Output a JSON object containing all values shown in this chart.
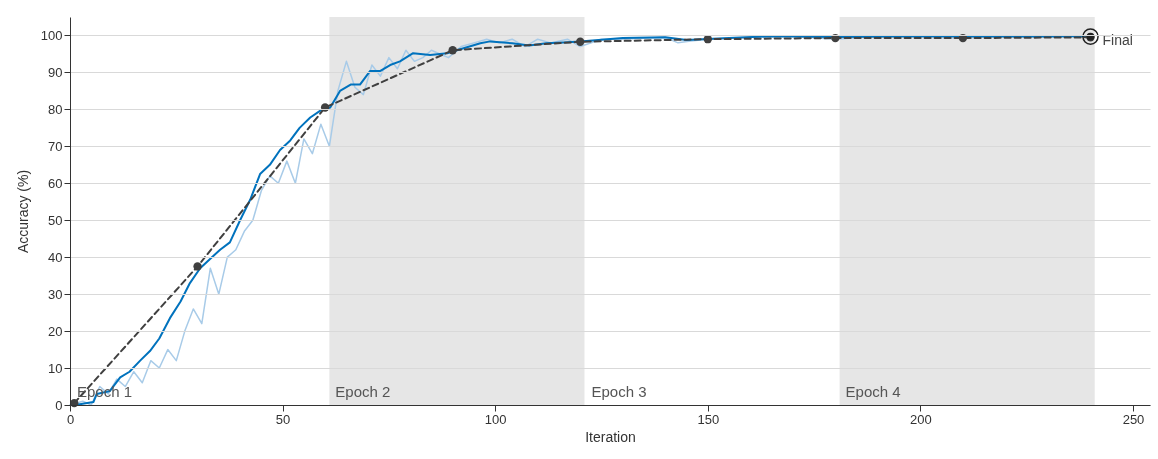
{
  "chart_data": {
    "type": "line",
    "xlabel": "Iteration",
    "ylabel": "Accuracy (%)",
    "xlim": [
      0,
      254
    ],
    "ylim": [
      0,
      105
    ],
    "xticks": [
      0,
      50,
      100,
      150,
      200,
      250
    ],
    "yticks": [
      0,
      10,
      20,
      30,
      40,
      50,
      60,
      70,
      80,
      90,
      100
    ],
    "grid": "y",
    "series": [
      {
        "color": "#a8cbe8",
        "x": [
          0,
          3,
          5,
          7,
          9,
          11,
          13,
          15,
          17,
          19,
          21,
          23,
          25,
          27,
          29,
          31,
          33,
          35,
          37,
          39,
          41,
          43,
          45,
          47,
          49,
          51,
          53,
          55,
          57,
          59,
          61,
          63,
          65,
          67,
          69,
          71,
          73,
          75,
          77,
          79,
          81,
          83,
          85,
          87,
          89,
          92,
          95,
          98,
          101,
          104,
          107,
          110,
          113,
          117,
          120,
          125,
          130,
          140,
          143,
          146,
          150,
          160,
          170,
          180,
          190,
          200,
          210,
          220,
          230,
          240
        ],
        "values": [
          0,
          1,
          0,
          5,
          3,
          7,
          5,
          9,
          6,
          12,
          10,
          15,
          12,
          20,
          26,
          22,
          37,
          30,
          40,
          42,
          47,
          50,
          58,
          62,
          60,
          66,
          60,
          72,
          68,
          76,
          70,
          85,
          93,
          86,
          84,
          92,
          89,
          94,
          91,
          96,
          93,
          94,
          96,
          95,
          94,
          97,
          98,
          99,
          98,
          99,
          97,
          99,
          98,
          99,
          97,
          99,
          99,
          99.5,
          98,
          98.5,
          99,
          99.5,
          99.8,
          99,
          99.8,
          99.5,
          99.3,
          99.8,
          99.5,
          100
        ]
      },
      {
        "color": "#0072bd",
        "x": [
          1.2,
          5.5,
          6.3,
          9.4,
          11.8,
          14,
          16.5,
          18.8,
          21,
          23.5,
          26,
          28.2,
          30.6,
          33,
          35.3,
          37.6,
          40,
          42.4,
          44.7,
          47,
          49.4,
          51.8,
          54,
          56.5,
          58.8,
          61.2,
          63.5,
          66,
          68.2,
          70.6,
          73,
          75.3,
          77.6,
          80.7,
          84.7,
          88.7,
          91,
          96.5,
          98.8,
          104,
          108,
          112,
          116,
          120,
          130,
          140,
          145,
          155,
          165,
          180,
          200,
          220,
          240
        ],
        "values": [
          0,
          0.8,
          3,
          3.8,
          7.5,
          9,
          12,
          14.6,
          18,
          23.5,
          28,
          33,
          37,
          39.6,
          42,
          44,
          50,
          55.6,
          62.5,
          65,
          69,
          71.6,
          75,
          77.8,
          79.6,
          80.5,
          85,
          86.7,
          86.7,
          90.4,
          90.4,
          92,
          93,
          95.2,
          94.7,
          95.2,
          96,
          97.9,
          98.4,
          97.9,
          97.3,
          97.9,
          98.1,
          98.4,
          99.3,
          99.5,
          98.8,
          99.3,
          99.8,
          99.6,
          99.8,
          99.7,
          99.8
        ]
      },
      {
        "color": "#404040",
        "line_style": "dashed",
        "marker": "circle",
        "x": [
          1,
          30,
          60,
          90,
          120,
          150,
          180,
          210,
          240
        ],
        "values": [
          0.5,
          37.5,
          80.5,
          96,
          98.3,
          99,
          99.3,
          99.3,
          99.5
        ]
      },
      {
        "type": "scatter",
        "color": "#222222",
        "marker": "circle",
        "x": [
          240
        ],
        "values": [
          99.7
        ]
      }
    ],
    "bands": [
      {
        "axis": "x",
        "from": 61,
        "to": 121,
        "label": "Epoch 2",
        "color": "#e6e6e6"
      },
      {
        "axis": "x",
        "from": 181,
        "to": 241,
        "label": "Epoch 4",
        "color": "#e6e6e6"
      }
    ],
    "annotations": [
      "Epoch 1",
      "Epoch 3",
      {
        "text": "Final",
        "x": 240,
        "y": 99.7
      }
    ]
  }
}
